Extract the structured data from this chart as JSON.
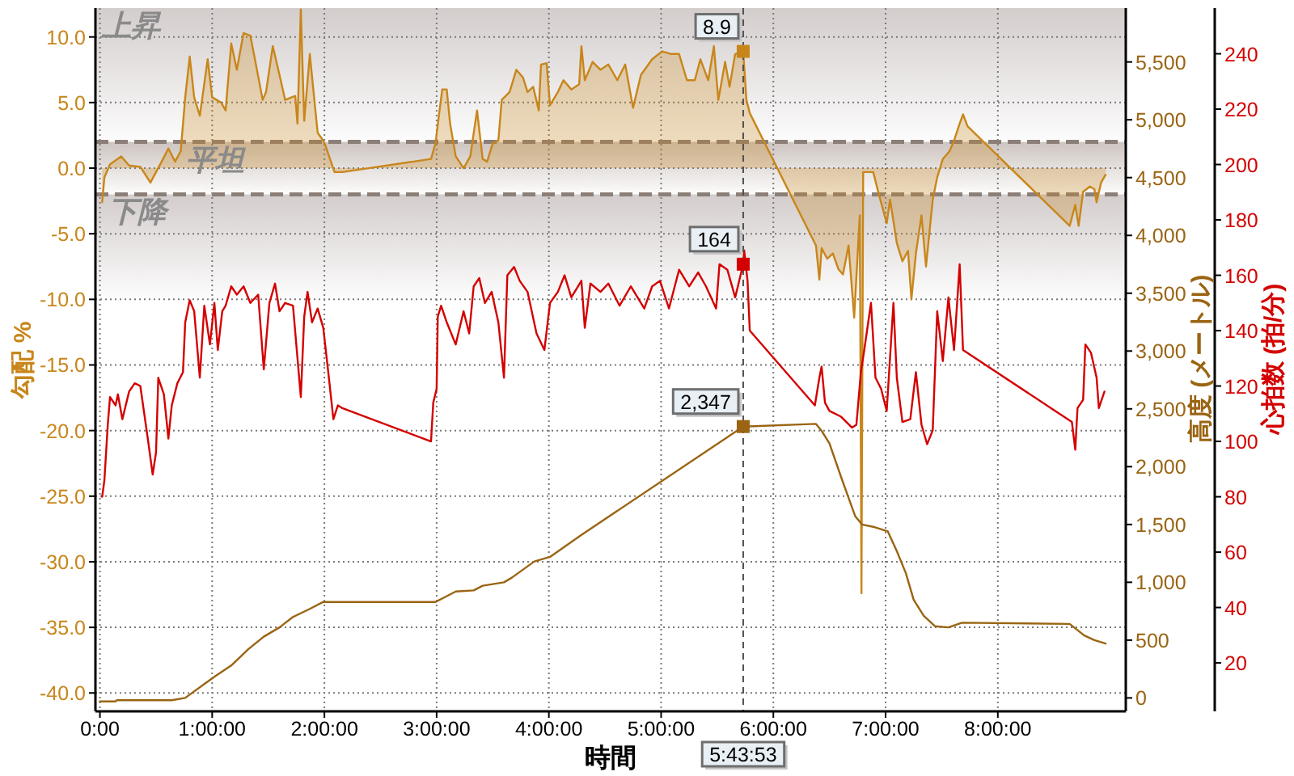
{
  "chart_data": {
    "type": "line",
    "xlabel": "時間",
    "ylabel": "勾配 %",
    "y2label": "高度 (メートル)",
    "y3label": "心拍数 (拍/分)",
    "xlim": [
      -0.04,
      9.14
    ],
    "xticks": [
      {
        "value": 0,
        "label": "0:00"
      },
      {
        "value": 1,
        "label": "1:00:00"
      },
      {
        "value": 2,
        "label": "2:00:00"
      },
      {
        "value": 3,
        "label": "3:00:00"
      },
      {
        "value": 4,
        "label": "4:00:00"
      },
      {
        "value": 5,
        "label": "5:00:00"
      },
      {
        "value": 6,
        "label": "6:00:00"
      },
      {
        "value": 7,
        "label": "7:00:00"
      },
      {
        "value": 8,
        "label": "8:00:00"
      }
    ],
    "ylim": [
      -41.4,
      12.2
    ],
    "yticks": [
      {
        "value": -40,
        "label": "-40.0"
      },
      {
        "value": -35,
        "label": "-35.0"
      },
      {
        "value": -30,
        "label": "-30.0"
      },
      {
        "value": -25,
        "label": "-25.0"
      },
      {
        "value": -20,
        "label": "-20.0"
      },
      {
        "value": -15,
        "label": "-15.0"
      },
      {
        "value": -10,
        "label": "-10.0"
      },
      {
        "value": -5,
        "label": "-5.0"
      },
      {
        "value": 0,
        "label": "0.0"
      },
      {
        "value": 5,
        "label": "5.0"
      },
      {
        "value": 10,
        "label": "10.0"
      }
    ],
    "y2lim": [
      -116,
      5966
    ],
    "y2ticks": [
      0,
      500,
      {
        "value": 1000,
        "label": "1,000"
      },
      {
        "value": 1500,
        "label": "1,500"
      },
      {
        "value": 2000,
        "label": "2,000"
      },
      {
        "value": 2500,
        "label": "2,500"
      },
      {
        "value": 3000,
        "label": "3,000"
      },
      {
        "value": 3500,
        "label": "3,500"
      },
      {
        "value": 4000,
        "label": "4,000"
      },
      {
        "value": 4500,
        "label": "4,500"
      },
      {
        "value": 5000,
        "label": "5,000"
      },
      {
        "value": 5500,
        "label": "5,500"
      }
    ],
    "y3lim": [
      2.5,
      256.5
    ],
    "y3ticks": [
      20,
      40,
      60,
      80,
      100,
      120,
      140,
      160,
      180,
      200,
      220,
      240
    ],
    "grid": true,
    "bands": [
      {
        "axis": "y",
        "from": 2,
        "to": 12.2,
        "label": "上昇",
        "color": "#d3cdcc"
      },
      {
        "axis": "y",
        "from": -2,
        "to": 2,
        "label": "平坦",
        "color": "#cdc4bf"
      },
      {
        "axis": "y",
        "from": -10,
        "to": -2,
        "label": "下降",
        "color": "#d3cdcc"
      }
    ],
    "ref_lines": [
      {
        "axis": "y",
        "value": 2,
        "color": "#8c7f78",
        "line_style": "dashed"
      },
      {
        "axis": "y",
        "value": -2,
        "color": "#8c7f78",
        "line_style": "dashed"
      },
      {
        "axis": "x",
        "value": 5.731389,
        "color": "#505050",
        "line_style": "dashed"
      }
    ],
    "annotations": [
      "5:43:53"
    ],
    "series": [
      {
        "type": "area",
        "color": "#c8861a",
        "x": [
          0.02,
          0.04,
          0.09,
          0.19,
          0.26,
          0.36,
          0.45,
          0.55,
          0.61,
          0.67,
          0.72,
          0.76,
          0.8,
          0.84,
          0.89,
          0.96,
          1.0,
          1.08,
          1.12,
          1.17,
          1.22,
          1.28,
          1.34,
          1.39,
          1.45,
          1.48,
          1.54,
          1.6,
          1.65,
          1.74,
          1.76,
          1.79,
          1.82,
          1.87,
          1.92,
          1.94,
          1.99,
          2.01,
          2.09,
          2.16,
          2.95,
          2.99,
          3.02,
          3.05,
          3.09,
          3.12,
          3.17,
          3.24,
          3.3,
          3.36,
          3.41,
          3.45,
          3.5,
          3.55,
          3.58,
          3.65,
          3.71,
          3.77,
          3.81,
          3.86,
          3.91,
          3.93,
          3.98,
          4.01,
          4.08,
          4.13,
          4.2,
          4.27,
          4.29,
          4.32,
          4.39,
          4.46,
          4.53,
          4.61,
          4.68,
          4.75,
          4.82,
          4.92,
          5.01,
          5.09,
          5.16,
          5.23,
          5.3,
          5.35,
          5.42,
          5.47,
          5.51,
          5.57,
          5.61,
          5.66,
          5.731389,
          5.76,
          5.79,
          6.38,
          6.41,
          6.43,
          6.48,
          6.53,
          6.58,
          6.62,
          6.67,
          6.72,
          6.77,
          6.785,
          6.8,
          6.89,
          6.94,
          7.01,
          7.04,
          7.1,
          7.15,
          7.2,
          7.23,
          7.27,
          7.32,
          7.36,
          7.42,
          7.46,
          7.51,
          7.57,
          7.61,
          7.66,
          7.69,
          7.73,
          8.64,
          8.69,
          8.72,
          8.76,
          8.82,
          8.86,
          8.88,
          8.92,
          8.96
        ],
        "values": [
          -2.6,
          -0.7,
          0.3,
          0.9,
          0.2,
          0.1,
          -1.1,
          0.5,
          1.5,
          0.5,
          1.3,
          5.4,
          8.5,
          5.4,
          4.0,
          8.3,
          5.4,
          5.0,
          4.4,
          9.5,
          7.5,
          10.3,
          10.1,
          7.9,
          5.2,
          5.8,
          9.3,
          7.1,
          5.2,
          5.5,
          3.4,
          12.1,
          3.6,
          8.7,
          4.4,
          2.7,
          2.1,
          1.7,
          -0.3,
          -0.3,
          0.7,
          1.9,
          4.0,
          6.0,
          6.0,
          3.4,
          0.9,
          0.0,
          0.9,
          4.4,
          0.7,
          0.5,
          1.9,
          2.1,
          5.2,
          5.8,
          7.5,
          6.9,
          5.8,
          6.2,
          4.4,
          7.9,
          8.0,
          4.8,
          5.8,
          6.7,
          6.0,
          6.4,
          9.3,
          6.7,
          8.1,
          7.5,
          7.9,
          6.7,
          7.9,
          4.6,
          7.1,
          8.3,
          8.9,
          8.7,
          8.7,
          6.7,
          6.7,
          8.3,
          6.7,
          9.3,
          5.2,
          8.1,
          6.2,
          8.7,
          8.9,
          5.2,
          4.2,
          -5.9,
          -8.5,
          -6.1,
          -6.9,
          -6.5,
          -7.7,
          -8.1,
          -5.9,
          -11.4,
          -3.6,
          -32.4,
          -0.3,
          -0.3,
          -2.0,
          -4.2,
          -2.4,
          -5.7,
          -7.1,
          -6.3,
          -10.0,
          -6.5,
          -3.6,
          -7.5,
          -2.4,
          -0.7,
          0.7,
          1.3,
          2.1,
          3.4,
          4.1,
          3.2,
          -4.4,
          -2.8,
          -4.4,
          -1.8,
          -1.4,
          -1.6,
          -2.6,
          -1.1,
          -0.5
        ],
        "value_labels": [
          null,
          null,
          null,
          null,
          null,
          null,
          null,
          null,
          null,
          null,
          null,
          null,
          null,
          null,
          null,
          null,
          null,
          null,
          null,
          null,
          null,
          null,
          null,
          null,
          null,
          null,
          null,
          null,
          null,
          null,
          null,
          null,
          null,
          null,
          null,
          null,
          null,
          null,
          null,
          null,
          null,
          null,
          null,
          null,
          null,
          null,
          null,
          null,
          null,
          null,
          null,
          null,
          null,
          null,
          null,
          null,
          null,
          null,
          null,
          null,
          null,
          null,
          null,
          null,
          null,
          null,
          null,
          null,
          null,
          null,
          null,
          null,
          null,
          null,
          null,
          null,
          null,
          null,
          null,
          null,
          null,
          null,
          null,
          null,
          null,
          null,
          null,
          null,
          null,
          null,
          "8.9",
          null,
          null,
          null,
          null,
          null,
          null,
          null,
          null,
          null,
          null,
          null,
          null,
          null,
          null,
          null,
          null,
          null,
          null,
          null,
          null,
          null,
          null,
          null,
          null,
          null,
          null,
          null,
          null,
          null,
          null,
          null,
          null,
          null,
          null,
          null,
          null,
          null,
          null,
          null,
          null,
          null,
          null
        ]
      },
      {
        "axis": "y3",
        "color": "#d40000",
        "x": [
          0.02,
          0.04,
          0.07,
          0.09,
          0.14,
          0.16,
          0.2,
          0.26,
          0.31,
          0.36,
          0.43,
          0.47,
          0.5,
          0.52,
          0.57,
          0.61,
          0.64,
          0.69,
          0.74,
          0.76,
          0.8,
          0.84,
          0.89,
          0.93,
          0.98,
          1.02,
          1.05,
          1.09,
          1.12,
          1.17,
          1.22,
          1.28,
          1.34,
          1.41,
          1.46,
          1.51,
          1.56,
          1.6,
          1.65,
          1.72,
          1.79,
          1.82,
          1.85,
          1.89,
          1.94,
          1.99,
          2.04,
          2.08,
          2.12,
          2.16,
          2.95,
          2.97,
          3.0,
          3.01,
          3.04,
          3.09,
          3.17,
          3.24,
          3.29,
          3.33,
          3.38,
          3.43,
          3.49,
          3.55,
          3.6,
          3.63,
          3.69,
          3.74,
          3.81,
          3.89,
          3.96,
          4.01,
          4.08,
          4.14,
          4.2,
          4.29,
          4.32,
          4.37,
          4.46,
          4.53,
          4.63,
          4.73,
          4.85,
          4.92,
          4.99,
          5.07,
          5.16,
          5.25,
          5.33,
          5.4,
          5.49,
          5.52,
          5.59,
          5.66,
          5.731389,
          5.74,
          5.77,
          5.79,
          6.37,
          6.41,
          6.43,
          6.46,
          6.5,
          6.6,
          6.7,
          6.74,
          6.78,
          6.81,
          6.87,
          6.91,
          6.96,
          7.01,
          7.07,
          7.1,
          7.15,
          7.22,
          7.27,
          7.32,
          7.37,
          7.42,
          7.46,
          7.51,
          7.56,
          7.61,
          7.66,
          7.69,
          8.66,
          8.69,
          8.71,
          8.76,
          8.78,
          8.83,
          8.88,
          8.9,
          8.95
        ],
        "values": [
          80,
          86,
          106,
          116,
          113,
          117,
          108,
          118,
          121,
          120,
          100,
          88,
          96,
          123,
          117,
          101,
          113,
          121,
          125,
          143,
          151,
          147,
          123,
          149,
          135,
          150,
          133,
          147,
          149,
          156,
          153,
          156,
          150,
          153,
          126,
          150,
          157,
          147,
          150,
          149,
          116,
          145,
          154,
          143,
          148,
          141,
          123,
          108,
          113,
          112,
          100,
          114,
          119,
          145,
          149,
          143,
          135,
          147,
          139,
          156,
          159,
          150,
          154,
          143,
          123,
          160,
          163,
          158,
          154,
          139,
          133,
          150,
          154,
          160,
          152,
          158,
          141,
          157,
          154,
          157,
          149,
          156,
          148,
          156,
          158,
          148,
          162,
          156,
          161,
          156,
          148,
          164,
          162,
          152,
          164,
          169,
          158,
          140,
          113,
          123,
          127,
          114,
          111,
          109,
          105,
          106,
          125,
          133,
          150,
          123,
          119,
          111,
          150,
          123,
          107,
          108,
          125,
          106,
          99,
          104,
          147,
          129,
          152,
          133,
          164,
          133,
          107,
          97,
          112,
          115,
          135,
          132,
          123,
          112,
          118
        ],
        "value_labels": [
          null,
          null,
          null,
          null,
          null,
          null,
          null,
          null,
          null,
          null,
          null,
          null,
          null,
          null,
          null,
          null,
          null,
          null,
          null,
          null,
          null,
          null,
          null,
          null,
          null,
          null,
          null,
          null,
          null,
          null,
          null,
          null,
          null,
          null,
          null,
          null,
          null,
          null,
          null,
          null,
          null,
          null,
          null,
          null,
          null,
          null,
          null,
          null,
          null,
          null,
          null,
          null,
          null,
          null,
          null,
          null,
          null,
          null,
          null,
          null,
          null,
          null,
          null,
          null,
          null,
          null,
          null,
          null,
          null,
          null,
          null,
          null,
          null,
          null,
          null,
          null,
          null,
          null,
          null,
          null,
          null,
          null,
          null,
          null,
          null,
          null,
          null,
          null,
          null,
          null,
          null,
          null,
          null,
          null,
          "164",
          null,
          null,
          null,
          null,
          null,
          null,
          null,
          null,
          null,
          null,
          null,
          null,
          null,
          null,
          null,
          null,
          null,
          null,
          null,
          null,
          null,
          null,
          null,
          null,
          null,
          null,
          null,
          null,
          null,
          null,
          null,
          null,
          null,
          null,
          null,
          null,
          null,
          null,
          null,
          null
        ]
      },
      {
        "axis": "y2",
        "color": "#9a6412",
        "x": [
          0.0,
          0.14,
          0.15,
          0.64,
          0.76,
          1.03,
          1.17,
          1.32,
          1.46,
          1.6,
          1.72,
          1.87,
          1.99,
          2.99,
          3.07,
          3.17,
          3.33,
          3.41,
          3.6,
          3.67,
          3.87,
          4.01,
          4.29,
          5.731389,
          6.38,
          6.43,
          6.5,
          6.6,
          6.67,
          6.73,
          6.79,
          6.89,
          7.02,
          7.1,
          7.18,
          7.25,
          7.34,
          7.44,
          7.56,
          7.68,
          8.64,
          8.77,
          8.86,
          8.96
        ],
        "values": [
          -30,
          -30,
          -20,
          -20,
          0,
          190,
          280,
          420,
          530,
          610,
          700,
          770,
          830,
          830,
          870,
          920,
          930,
          970,
          1000,
          1040,
          1180,
          1220,
          1410,
          2347,
          2370,
          2310,
          2200,
          1920,
          1730,
          1570,
          1500,
          1480,
          1440,
          1270,
          1080,
          850,
          710,
          620,
          610,
          650,
          640,
          540,
          500,
          470
        ],
        "value_labels": [
          null,
          null,
          null,
          null,
          null,
          null,
          null,
          null,
          null,
          null,
          null,
          null,
          null,
          null,
          null,
          null,
          null,
          null,
          null,
          null,
          null,
          null,
          null,
          "2,347",
          null,
          null,
          null,
          null,
          null,
          null,
          null,
          null,
          null,
          null,
          null,
          null,
          null,
          null,
          null,
          null,
          null,
          null,
          null,
          null
        ]
      }
    ]
  }
}
